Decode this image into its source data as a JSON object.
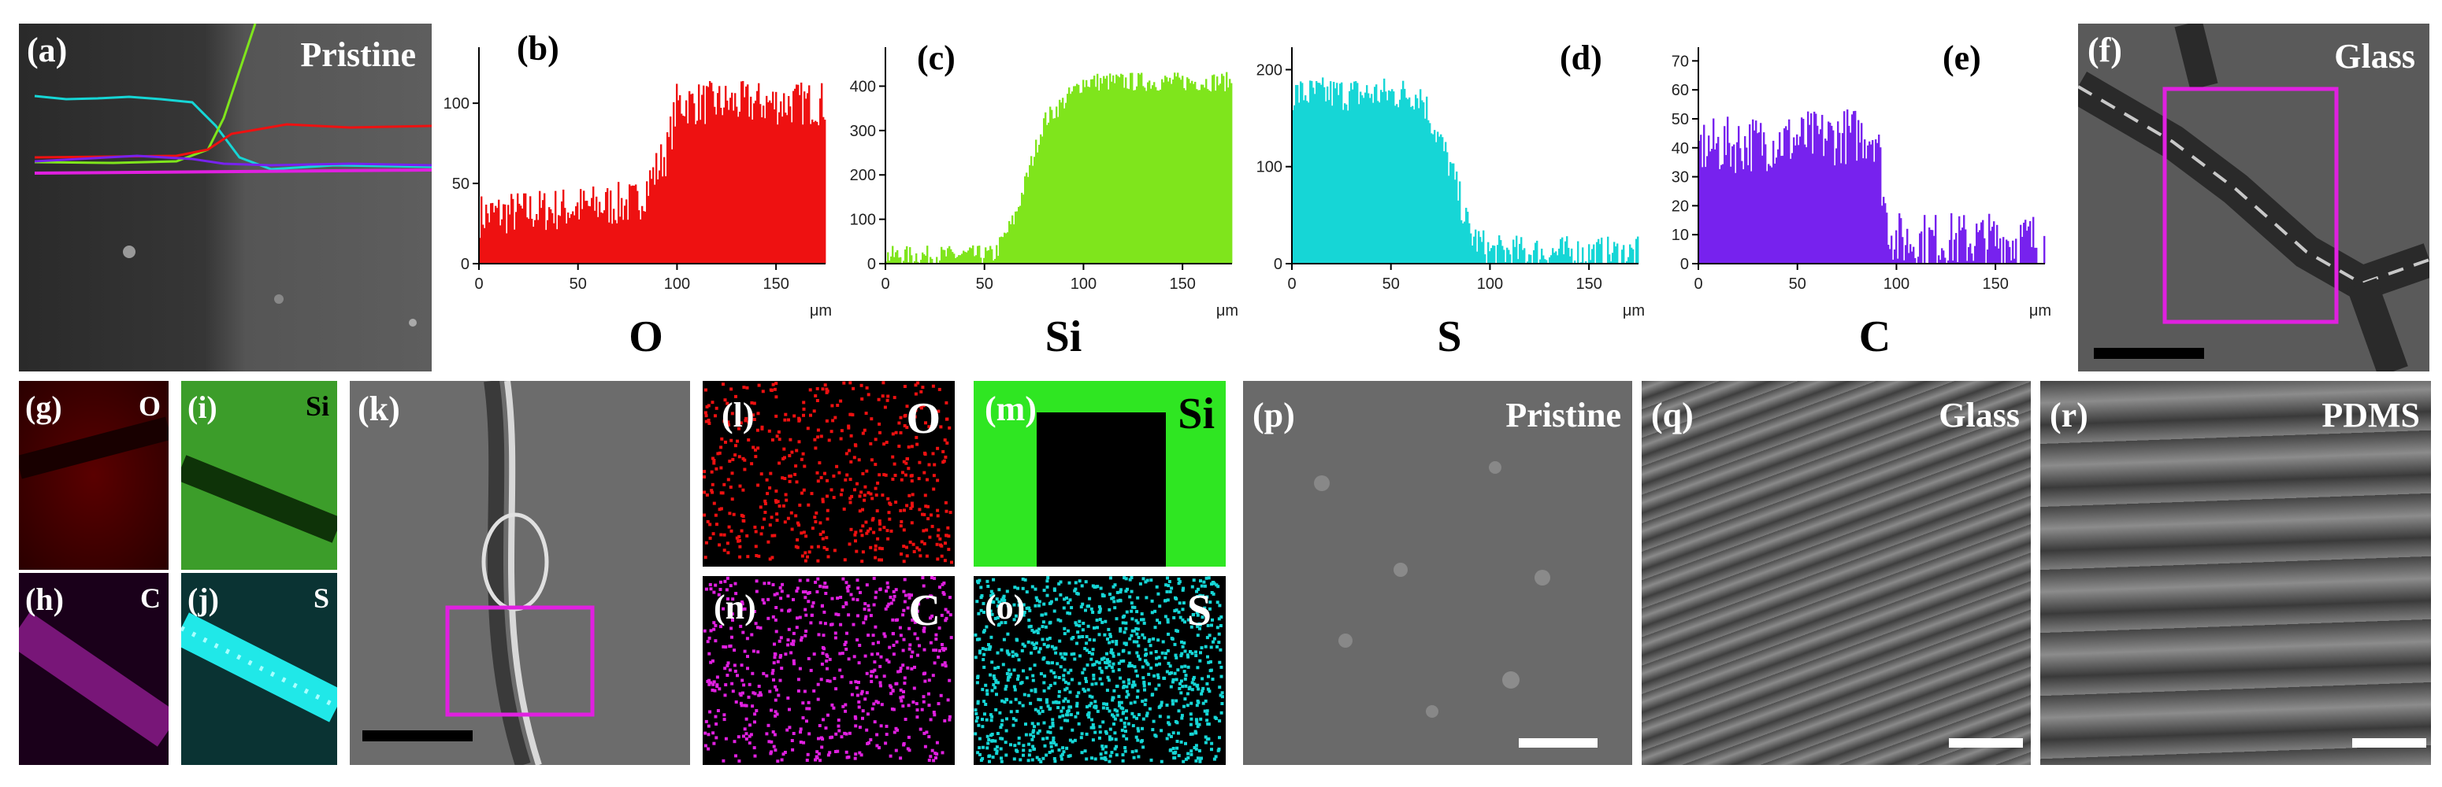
{
  "panels": {
    "a": {
      "label": "(a)",
      "tag": "Pristine"
    },
    "b": {
      "label": "(b)"
    },
    "c": {
      "label": "(c)"
    },
    "d": {
      "label": "(d)"
    },
    "e": {
      "label": "(e)"
    },
    "f": {
      "label": "(f)",
      "tag": "Glass"
    },
    "g": {
      "label": "(g)",
      "tag": "O"
    },
    "h": {
      "label": "(h)",
      "tag": "C"
    },
    "i": {
      "label": "(i)",
      "tag": "Si"
    },
    "j": {
      "label": "(j)",
      "tag": "S"
    },
    "k": {
      "label": "(k)"
    },
    "l": {
      "label": "(l)",
      "tag": "O"
    },
    "m": {
      "label": "(m)",
      "tag": "Si"
    },
    "n": {
      "label": "(n)",
      "tag": "C"
    },
    "o": {
      "label": "(o)",
      "tag": "S"
    },
    "p": {
      "label": "(p)",
      "tag": "Pristine"
    },
    "q": {
      "label": "(q)",
      "tag": "Glass"
    },
    "r": {
      "label": "(r)",
      "tag": "PDMS"
    }
  },
  "colors": {
    "O": "#ee1111",
    "Si": "#7fe51c",
    "S": "#16d6d6",
    "C": "#7722ee",
    "highlight": "#e020e0"
  },
  "chart_data": [
    {
      "type": "bar",
      "element": "O",
      "panel": "(b)",
      "xlabel": "μm",
      "xlim": [
        0,
        175
      ],
      "xticks": [
        0,
        50,
        100,
        150
      ],
      "ylim": [
        0,
        130
      ],
      "yticks": [
        0,
        50,
        100
      ],
      "profile": [
        {
          "x": 0,
          "y": 30
        },
        {
          "x": 80,
          "y": 38
        },
        {
          "x": 95,
          "y": 70
        },
        {
          "x": 100,
          "y": 100
        },
        {
          "x": 175,
          "y": 100
        }
      ],
      "noise": 14
    },
    {
      "type": "bar",
      "element": "Si",
      "panel": "(c)",
      "xlabel": "μm",
      "xlim": [
        0,
        175
      ],
      "xticks": [
        0,
        50,
        100,
        150
      ],
      "ylim": [
        0,
        470
      ],
      "yticks": [
        0,
        100,
        200,
        300,
        400
      ],
      "profile": [
        {
          "x": 0,
          "y": 18
        },
        {
          "x": 55,
          "y": 20
        },
        {
          "x": 65,
          "y": 100
        },
        {
          "x": 80,
          "y": 320
        },
        {
          "x": 100,
          "y": 410
        },
        {
          "x": 175,
          "y": 410
        }
      ],
      "noise": 22
    },
    {
      "type": "bar",
      "element": "S",
      "panel": "(d)",
      "xlabel": "μm",
      "xlim": [
        0,
        175
      ],
      "xticks": [
        0,
        50,
        100,
        150
      ],
      "ylim": [
        0,
        215
      ],
      "yticks": [
        0,
        100,
        200
      ],
      "profile": [
        {
          "x": 0,
          "y": 175
        },
        {
          "x": 65,
          "y": 175
        },
        {
          "x": 80,
          "y": 100
        },
        {
          "x": 90,
          "y": 30
        },
        {
          "x": 100,
          "y": 12
        },
        {
          "x": 175,
          "y": 10
        }
      ],
      "noise": 18
    },
    {
      "type": "bar",
      "element": "C",
      "panel": "(e)",
      "xlabel": "μm",
      "xlim": [
        0,
        175
      ],
      "xticks": [
        0,
        50,
        100,
        150
      ],
      "ylim": [
        0,
        72
      ],
      "yticks": [
        0,
        10,
        20,
        30,
        40,
        50,
        60,
        70
      ],
      "profile": [
        {
          "x": 0,
          "y": 40
        },
        {
          "x": 90,
          "y": 45
        },
        {
          "x": 95,
          "y": 15
        },
        {
          "x": 100,
          "y": 8
        },
        {
          "x": 175,
          "y": 8
        }
      ],
      "noise": 10
    }
  ],
  "element_captions": [
    "O",
    "Si",
    "S",
    "C"
  ]
}
